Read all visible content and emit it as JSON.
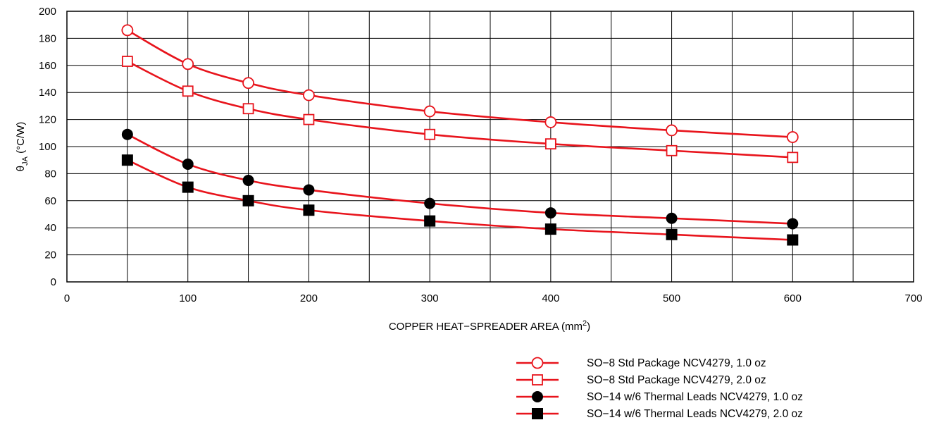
{
  "chart_data": {
    "type": "line",
    "title": "",
    "xlabel": {
      "main": "COPPER HEAT−SPREADER AREA (mm",
      "sup": "2",
      "tail": ")"
    },
    "ylabel": {
      "symbol": "θ",
      "sub": "JA",
      "unit": " (°C/W)"
    },
    "xlim": [
      0,
      700
    ],
    "ylim": [
      0,
      200
    ],
    "x_ticks": [
      "0",
      "100",
      "200",
      "300",
      "400",
      "500",
      "600",
      "700"
    ],
    "y_ticks": [
      "0",
      "20",
      "40",
      "60",
      "80",
      "100",
      "120",
      "140",
      "160",
      "180",
      "200"
    ],
    "grid": true,
    "legend_position": "bottom-right",
    "line_color": "#e8141c",
    "x": [
      50,
      100,
      150,
      200,
      300,
      400,
      500,
      600
    ],
    "series": [
      {
        "name": "SO−8 Std Package NCV4279, 1.0 oz",
        "marker": "circle-open",
        "values": [
          186,
          161,
          147,
          138,
          126,
          118,
          112,
          107
        ]
      },
      {
        "name": "SO−8 Std Package NCV4279, 2.0 oz",
        "marker": "square-open",
        "values": [
          163,
          141,
          128,
          120,
          109,
          102,
          97,
          92
        ]
      },
      {
        "name": "SO−14 w/6 Thermal Leads NCV4279, 1.0 oz",
        "marker": "circle-filled",
        "values": [
          109,
          87,
          75,
          68,
          58,
          51,
          47,
          43
        ]
      },
      {
        "name": "SO−14 w/6 Thermal Leads NCV4279, 2.0 oz",
        "marker": "square-filled",
        "values": [
          90,
          70,
          60,
          53,
          45,
          39,
          35,
          31
        ]
      }
    ]
  }
}
